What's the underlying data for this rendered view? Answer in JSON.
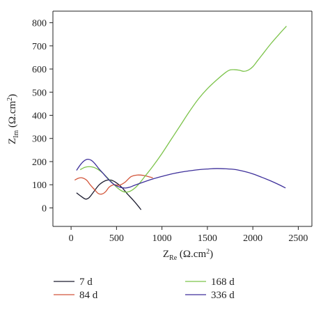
{
  "chart_data": {
    "type": "line",
    "xlabel_main": "Z",
    "xlabel_sub": "Re",
    "xlabel_unit": " (Ω.cm",
    "xlabel_sup": "2",
    "xlabel_end": ")",
    "ylabel_main": "Z",
    "ylabel_sub": "Im",
    "ylabel_unit": " (Ω.cm",
    "ylabel_sup": "2",
    "ylabel_end": ")",
    "xlim": [
      -200,
      2650
    ],
    "ylim": [
      -80,
      850
    ],
    "xticks": [
      0,
      500,
      1000,
      1500,
      2000,
      2500
    ],
    "yticks": [
      0,
      100,
      200,
      300,
      400,
      500,
      600,
      700,
      800
    ],
    "grid": false,
    "legend_position": "bottom",
    "series": [
      {
        "name": "7 d",
        "color": "#1a1a2e",
        "x": [
          60,
          110,
          160,
          200,
          250,
          310,
          380,
          440,
          500,
          560,
          620,
          680,
          730,
          770
        ],
        "y": [
          65,
          50,
          38,
          45,
          70,
          100,
          118,
          120,
          108,
          88,
          60,
          35,
          12,
          -8
        ]
      },
      {
        "name": "84 d",
        "color": "#d2553a",
        "x": [
          40,
          80,
          120,
          170,
          210,
          260,
          300,
          340,
          380,
          420,
          470,
          530,
          590,
          660,
          730,
          800,
          860,
          900
        ],
        "y": [
          120,
          128,
          130,
          120,
          100,
          78,
          62,
          60,
          70,
          90,
          100,
          98,
          110,
          135,
          142,
          140,
          134,
          130
        ]
      },
      {
        "name": "168 d",
        "color": "#7cc34a",
        "x": [
          100,
          150,
          200,
          250,
          300,
          350,
          400,
          450,
          500,
          550,
          600,
          650,
          700,
          750,
          800,
          900,
          1000,
          1100,
          1200,
          1300,
          1400,
          1500,
          1600,
          1700,
          1750,
          1800,
          1850,
          1900,
          1950,
          2000,
          2050,
          2100,
          2200,
          2300,
          2370
        ],
        "y": [
          165,
          175,
          178,
          175,
          165,
          150,
          130,
          110,
          90,
          75,
          68,
          72,
          85,
          105,
          130,
          180,
          235,
          295,
          355,
          415,
          470,
          515,
          552,
          585,
          596,
          597,
          595,
          590,
          595,
          610,
          635,
          660,
          710,
          755,
          785
        ]
      },
      {
        "name": "336 d",
        "color": "#3d2f9a",
        "x": [
          60,
          100,
          140,
          180,
          220,
          260,
          300,
          350,
          400,
          450,
          500,
          550,
          600,
          650,
          700,
          800,
          900,
          1000,
          1100,
          1200,
          1300,
          1400,
          1500,
          1600,
          1700,
          1800,
          1900,
          2000,
          2100,
          2200,
          2300,
          2360
        ],
        "y": [
          162,
          185,
          202,
          210,
          206,
          192,
          172,
          150,
          128,
          108,
          95,
          88,
          86,
          90,
          98,
          112,
          125,
          136,
          146,
          154,
          160,
          165,
          168,
          170,
          169,
          166,
          158,
          147,
          132,
          116,
          98,
          86
        ]
      }
    ]
  }
}
